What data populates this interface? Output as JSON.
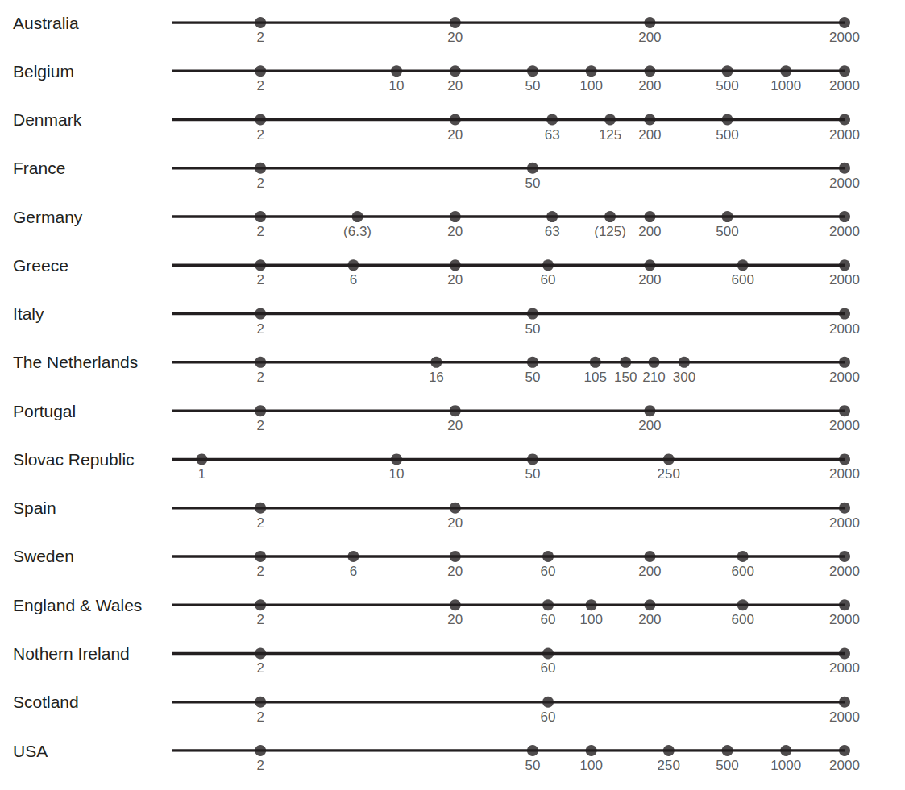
{
  "chart_data": {
    "type": "scatter",
    "log": "x",
    "xlim": [
      0.7,
      2000
    ],
    "grid": false,
    "tick_labels": "y",
    "data_labels": true,
    "color": "#231f20",
    "rows": [
      {
        "name": "Australia",
        "values": [
          2,
          20,
          200,
          2000
        ]
      },
      {
        "name": "Belgium",
        "values": [
          2,
          10,
          20,
          50,
          100,
          200,
          500,
          1000,
          2000
        ]
      },
      {
        "name": "Denmark",
        "values": [
          2,
          20,
          63,
          125,
          200,
          500,
          2000
        ]
      },
      {
        "name": "France",
        "values": [
          2,
          50,
          2000
        ]
      },
      {
        "name": "Germany",
        "values": [
          2,
          6.3,
          20,
          63,
          125,
          200,
          500,
          2000
        ],
        "value_labels": [
          "2",
          "(6.3)",
          "20",
          "63",
          "(125)",
          "200",
          "500",
          "2000"
        ]
      },
      {
        "name": "Greece",
        "values": [
          2,
          6,
          20,
          60,
          200,
          600,
          2000
        ]
      },
      {
        "name": "Italy",
        "values": [
          2,
          50,
          2000
        ]
      },
      {
        "name": "The Netherlands",
        "values": [
          2,
          16,
          50,
          105,
          150,
          210,
          300,
          2000
        ]
      },
      {
        "name": "Portugal",
        "values": [
          2,
          20,
          200,
          2000
        ]
      },
      {
        "name": "Slovac Republic",
        "values": [
          1,
          10,
          50,
          250,
          2000
        ]
      },
      {
        "name": "Spain",
        "values": [
          2,
          20,
          2000
        ]
      },
      {
        "name": "Sweden",
        "values": [
          2,
          6,
          20,
          60,
          200,
          600,
          2000
        ]
      },
      {
        "name": "England & Wales",
        "values": [
          2,
          20,
          60,
          100,
          200,
          600,
          2000
        ]
      },
      {
        "name": "Nothern Ireland",
        "values": [
          2,
          60,
          2000
        ]
      },
      {
        "name": "Scotland",
        "values": [
          2,
          60,
          2000
        ]
      },
      {
        "name": "USA",
        "values": [
          2,
          50,
          100,
          250,
          500,
          1000,
          2000
        ]
      }
    ]
  }
}
